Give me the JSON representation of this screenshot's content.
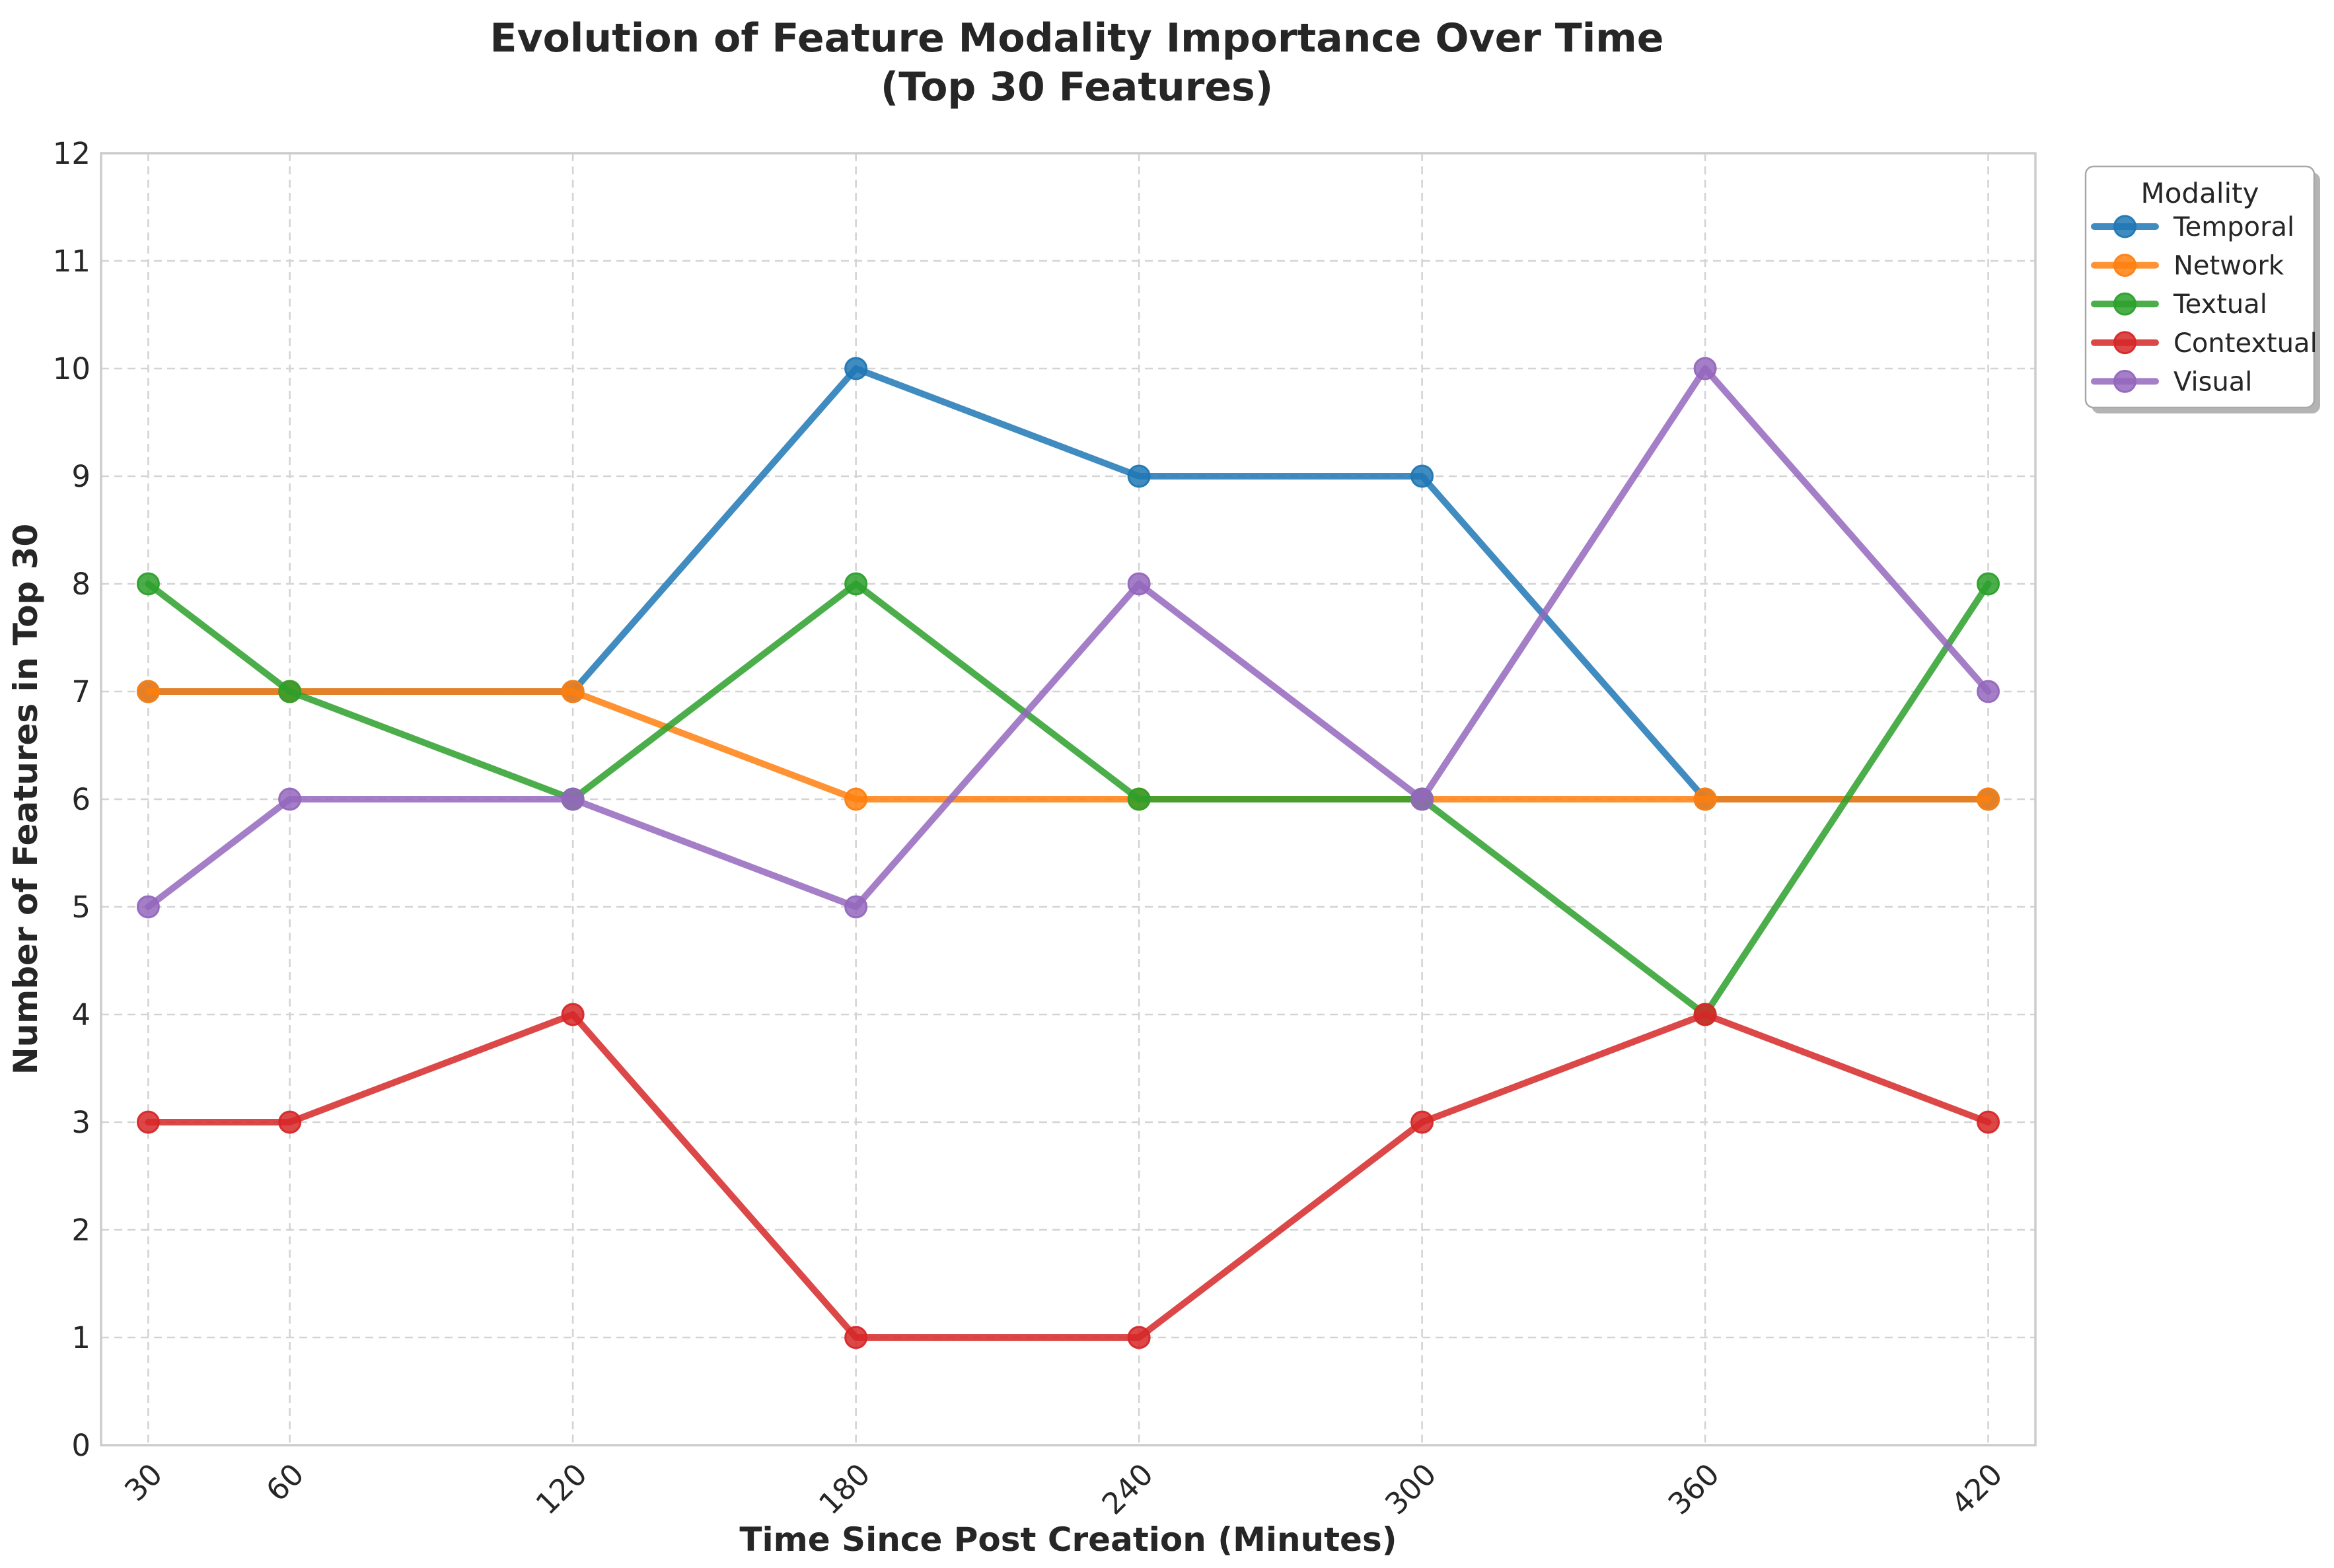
{
  "title": {
    "line1": "Evolution of Feature Modality Importance Over Time",
    "line2": "(Top 30 Features)"
  },
  "axes": {
    "xlabel": "Time Since Post Creation (Minutes)",
    "ylabel": "Number of Features in Top 30"
  },
  "legend": {
    "title": "Modality",
    "entries": [
      "Temporal",
      "Network",
      "Textual",
      "Contextual",
      "Visual"
    ],
    "position": "outside upper right"
  },
  "style_colors": {
    "grid": "#d4d4d4",
    "spine": "#cccccc",
    "text": "#262626",
    "legend_border": "#a8a8a8"
  },
  "chart_data": {
    "type": "line",
    "title": "Evolution of Feature Modality Importance Over Time (Top 30 Features)",
    "xlabel": "Time Since Post Creation (Minutes)",
    "ylabel": "Number of Features in Top 30",
    "x": [
      30,
      60,
      120,
      180,
      240,
      300,
      360,
      420
    ],
    "xticks": [
      30,
      60,
      120,
      180,
      240,
      300,
      360,
      420
    ],
    "yticks": [
      0,
      1,
      2,
      3,
      4,
      5,
      6,
      7,
      8,
      9,
      10,
      11,
      12
    ],
    "xlim": [
      20,
      430
    ],
    "ylim": [
      0,
      12
    ],
    "grid": true,
    "x_tick_rotation": 45,
    "legend_title": "Modality",
    "legend_position": "outside upper right",
    "series": [
      {
        "name": "Temporal",
        "color": "#1f77b4",
        "values": [
          7,
          7,
          7,
          10,
          9,
          9,
          6,
          6
        ]
      },
      {
        "name": "Network",
        "color": "#ff7f0e",
        "values": [
          7,
          7,
          7,
          6,
          6,
          6,
          6,
          6
        ]
      },
      {
        "name": "Textual",
        "color": "#2ca02c",
        "values": [
          8,
          7,
          6,
          8,
          6,
          6,
          4,
          8
        ]
      },
      {
        "name": "Contextual",
        "color": "#d62728",
        "values": [
          3,
          3,
          4,
          1,
          1,
          3,
          4,
          3
        ]
      },
      {
        "name": "Visual",
        "color": "#9467bd",
        "values": [
          5,
          6,
          6,
          5,
          8,
          6,
          10,
          7
        ]
      }
    ]
  }
}
